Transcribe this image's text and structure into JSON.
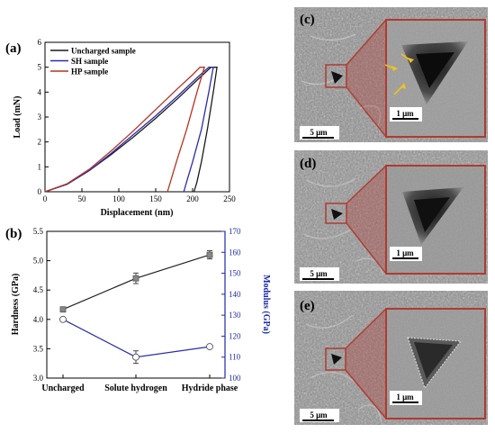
{
  "panels": {
    "a": "(a)",
    "b": "(b)",
    "c": "(c)",
    "d": "(d)",
    "e": "(e)"
  },
  "colors": {
    "uncharged": "#1a1a1a",
    "sh": "#2b2bb0",
    "hp": "#b8321f",
    "modulus_axis": "#1f2aa8",
    "hardness_series": "#222222",
    "modulus_series": "#2b2bb0",
    "inset_frame": "#b03a30",
    "arrow": "#f2c21a"
  },
  "chart_data": [
    {
      "type": "line",
      "panel": "(a)",
      "xlabel": "Displacement (nm)",
      "ylabel": "Load (mN)",
      "xlim": [
        0,
        250
      ],
      "ylim": [
        0,
        6
      ],
      "xticks": [
        0,
        50,
        100,
        150,
        200,
        250
      ],
      "yticks": [
        0,
        1,
        2,
        3,
        4,
        5,
        6
      ],
      "grid": false,
      "legend_position": "top-left",
      "series": [
        {
          "name": "Uncharged sample",
          "color_key": "uncharged",
          "x": [
            0,
            30,
            60,
            90,
            120,
            150,
            180,
            205,
            225,
            229,
            233,
            228,
            220,
            212,
            206,
            202
          ],
          "y": [
            0,
            0.3,
            0.85,
            1.5,
            2.2,
            2.95,
            3.75,
            4.45,
            5.0,
            5.0,
            5.0,
            4.0,
            2.5,
            1.2,
            0.4,
            0
          ]
        },
        {
          "name": "SH sample",
          "color_key": "sh",
          "x": [
            0,
            30,
            60,
            90,
            120,
            150,
            180,
            205,
            222,
            225,
            228,
            222,
            212,
            200,
            192,
            188
          ],
          "y": [
            0,
            0.3,
            0.85,
            1.55,
            2.3,
            3.05,
            3.85,
            4.55,
            5.0,
            5.0,
            5.0,
            4.0,
            2.5,
            1.2,
            0.4,
            0
          ]
        },
        {
          "name": "HP sample",
          "color_key": "hp",
          "x": [
            0,
            30,
            60,
            90,
            120,
            150,
            180,
            200,
            210,
            213,
            216,
            206,
            192,
            178,
            170,
            166
          ],
          "y": [
            0,
            0.32,
            0.9,
            1.65,
            2.45,
            3.3,
            4.15,
            4.7,
            5.0,
            5.0,
            5.0,
            4.0,
            2.5,
            1.2,
            0.4,
            0
          ]
        }
      ]
    },
    {
      "type": "line",
      "panel": "(b)",
      "categories": [
        "Uncharged",
        "Solute hydrogen",
        "Hydride phase"
      ],
      "ylabel": "Hardness (GPa)",
      "y2label": "Modulus (GPa)",
      "ylim": [
        3.0,
        5.5
      ],
      "y2lim": [
        100,
        170
      ],
      "yticks": [
        3.0,
        3.5,
        4.0,
        4.5,
        5.0,
        5.5
      ],
      "y2ticks": [
        100,
        110,
        120,
        130,
        140,
        150,
        160,
        170
      ],
      "grid": false,
      "series": [
        {
          "axis": "left",
          "marker": "square",
          "color_key": "hardness_series",
          "values": [
            4.17,
            4.7,
            5.1
          ],
          "errors": [
            0.0,
            0.09,
            0.07
          ]
        },
        {
          "axis": "right",
          "marker": "circle",
          "color_key": "modulus_series",
          "values": [
            128,
            110,
            115
          ],
          "errors": [
            0.0,
            3.0,
            0.8
          ]
        }
      ]
    }
  ],
  "micrographs": [
    {
      "panel": "(c)",
      "scale_main": "5 μm",
      "scale_inset": "1 μm",
      "arrows": 4
    },
    {
      "panel": "(d)",
      "scale_main": "5 μm",
      "scale_inset": "1 μm",
      "arrows": 0
    },
    {
      "panel": "(e)",
      "scale_main": "5 μm",
      "scale_inset": "1 μm",
      "arrows": 0
    }
  ]
}
